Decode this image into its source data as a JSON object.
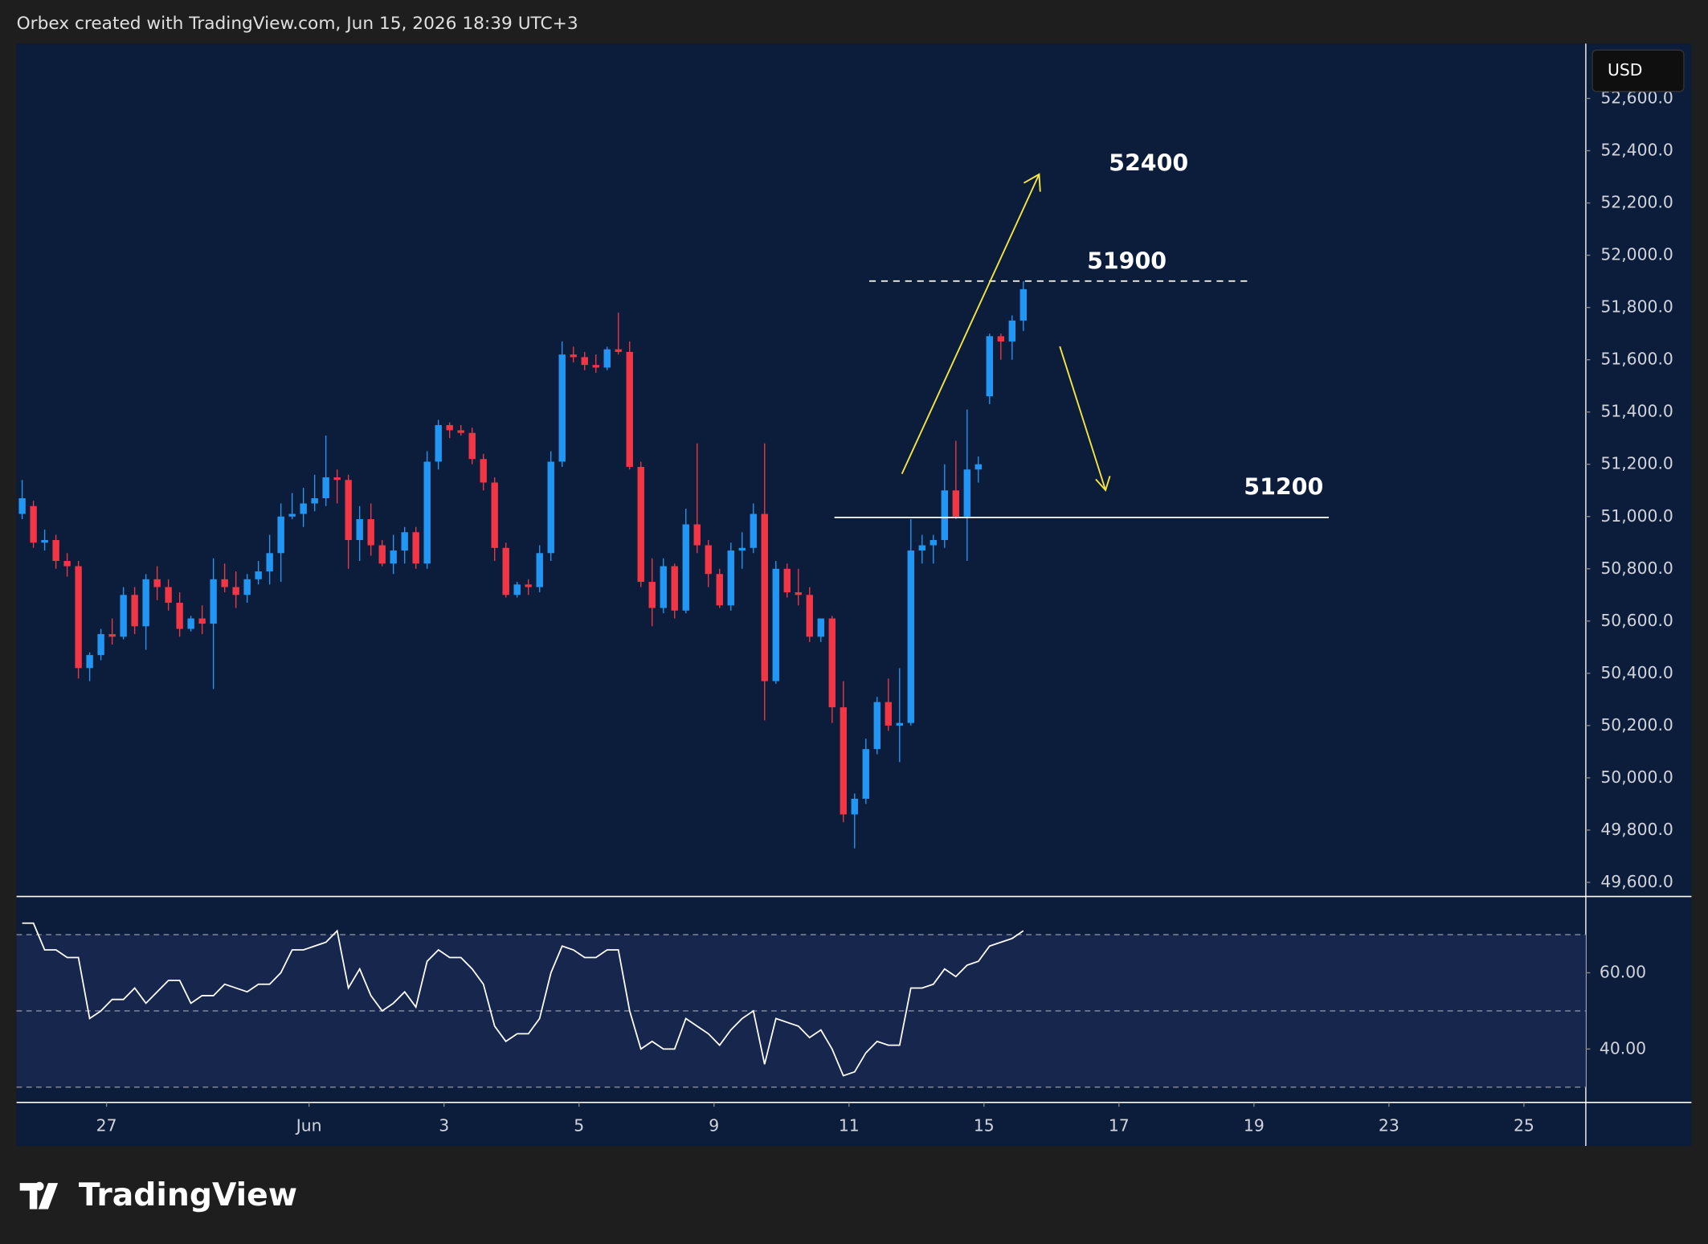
{
  "header": {
    "attribution": "Orbex created with TradingView.com, Jun 15, 2026 18:39 UTC+3",
    "logo": "TradingView"
  },
  "chart_data": [
    {
      "type": "candlestick",
      "currency": "USD",
      "up_color": "#2196f3",
      "down_color": "#f23645",
      "annotations": [
        "52400",
        "51900",
        "51200"
      ],
      "open": [
        51010,
        51040,
        50900,
        50910,
        50830,
        50810,
        50420,
        50470,
        50550,
        50540,
        50700,
        50580,
        50760,
        50730,
        50670,
        50570,
        50610,
        50590,
        50760,
        50730,
        50700,
        50760,
        50790,
        50860,
        51000,
        51010,
        51050,
        51070,
        51150,
        51140,
        50910,
        50990,
        50890,
        50820,
        50870,
        50940,
        50820,
        51210,
        51350,
        51330,
        51320,
        51220,
        51130,
        50880,
        50700,
        50740,
        50730,
        50860,
        51210,
        51620,
        51610,
        51580,
        51570,
        51640,
        51630,
        51190,
        50750,
        50650,
        50810,
        50640,
        50970,
        50890,
        50780,
        50660,
        50870,
        50880,
        51010,
        50370,
        50800,
        50710,
        50700,
        50540,
        50610,
        50270,
        49860,
        49920,
        50110,
        50290,
        50200,
        50210,
        50870,
        50890,
        50910,
        51100,
        51000,
        51180,
        51460,
        51690,
        51670,
        51750
      ],
      "high": [
        51140,
        51060,
        50950,
        50930,
        50860,
        50830,
        50480,
        50570,
        50610,
        50730,
        50730,
        50780,
        50810,
        50760,
        50710,
        50620,
        50660,
        50840,
        50820,
        50790,
        50780,
        50830,
        50930,
        51050,
        51090,
        51110,
        51160,
        51310,
        51180,
        51160,
        51040,
        51050,
        50910,
        50930,
        50960,
        50960,
        51250,
        51370,
        51360,
        51350,
        51340,
        51240,
        51150,
        50900,
        50750,
        50760,
        50890,
        51250,
        51670,
        51650,
        51630,
        51620,
        51650,
        51780,
        51670,
        51210,
        50840,
        50840,
        50820,
        51030,
        51280,
        50910,
        50800,
        50900,
        50940,
        51050,
        51280,
        50830,
        50820,
        50800,
        50730,
        50610,
        50620,
        50370,
        49940,
        50150,
        50310,
        50380,
        50420,
        50990,
        50930,
        50930,
        51200,
        51290,
        51410,
        51230,
        51700,
        51700,
        51770,
        51900
      ],
      "low": [
        50990,
        50880,
        50870,
        50800,
        50770,
        50380,
        50370,
        50450,
        50510,
        50530,
        50550,
        50490,
        50680,
        50640,
        50540,
        50560,
        50550,
        50340,
        50710,
        50650,
        50670,
        50740,
        50740,
        50750,
        50990,
        50960,
        51020,
        51040,
        51050,
        50800,
        50830,
        50850,
        50810,
        50780,
        50820,
        50800,
        50800,
        51180,
        51300,
        51310,
        51200,
        51100,
        50830,
        50690,
        50690,
        50700,
        50710,
        50830,
        51190,
        51590,
        51560,
        51550,
        51560,
        51620,
        51180,
        50730,
        50580,
        50630,
        50610,
        50630,
        50860,
        50730,
        50650,
        50640,
        50800,
        50860,
        50220,
        50360,
        50690,
        50660,
        50520,
        50520,
        50210,
        49830,
        49730,
        49900,
        50090,
        50180,
        50060,
        50200,
        50820,
        50820,
        50880,
        50990,
        50830,
        51130,
        51430,
        51600,
        51600,
        51710
      ],
      "close": [
        51070,
        50900,
        50910,
        50830,
        50810,
        50420,
        50470,
        50550,
        50540,
        50700,
        50580,
        50760,
        50730,
        50670,
        50570,
        50610,
        50590,
        50760,
        50730,
        50700,
        50760,
        50790,
        50860,
        51000,
        51010,
        51050,
        51070,
        51150,
        51140,
        50910,
        50990,
        50890,
        50820,
        50870,
        50940,
        50820,
        51210,
        51350,
        51330,
        51320,
        51220,
        51130,
        50880,
        50700,
        50740,
        50730,
        50860,
        51210,
        51620,
        51610,
        51580,
        51570,
        51640,
        51630,
        51190,
        50750,
        50650,
        50810,
        50640,
        50970,
        50890,
        50780,
        50660,
        50870,
        50880,
        51010,
        50370,
        50800,
        50710,
        50700,
        50540,
        50610,
        50270,
        49860,
        49920,
        50110,
        50290,
        50200,
        50210,
        50870,
        50890,
        50910,
        51100,
        51000,
        51180,
        51200,
        51690,
        51670,
        51750,
        51870
      ],
      "ylim": [
        49550,
        52810
      ],
      "yticks": [
        {
          "value": 49600,
          "label": "49,600.0"
        },
        {
          "value": 49800,
          "label": "49,800.0"
        },
        {
          "value": 50000,
          "label": "50,000.0"
        },
        {
          "value": 50200,
          "label": "50,200.0"
        },
        {
          "value": 50400,
          "label": "50,400.0"
        },
        {
          "value": 50600,
          "label": "50,600.0"
        },
        {
          "value": 50800,
          "label": "50,800.0"
        },
        {
          "value": 51000,
          "label": "51,000.0"
        },
        {
          "value": 51200,
          "label": "51,200.0"
        },
        {
          "value": 51400,
          "label": "51,400.0"
        },
        {
          "value": 51600,
          "label": "51,600.0"
        },
        {
          "value": 51800,
          "label": "51,800.0"
        },
        {
          "value": 52000,
          "label": "52,000.0"
        },
        {
          "value": 52200,
          "label": "52,200.0"
        },
        {
          "value": 52400,
          "label": "52,400.0"
        },
        {
          "value": 52600,
          "label": "52,600.0"
        }
      ],
      "xlim": [
        -0.5,
        139
      ],
      "xticks": [
        {
          "value": 7.5,
          "label": "27"
        },
        {
          "value": 25.5,
          "label": "Jun"
        },
        {
          "value": 37.5,
          "label": "3"
        },
        {
          "value": 49.5,
          "label": "5"
        },
        {
          "value": 61.5,
          "label": "9"
        },
        {
          "value": 73.5,
          "label": "11"
        },
        {
          "value": 85.5,
          "label": "15"
        },
        {
          "value": 97.5,
          "label": "17"
        },
        {
          "value": 109.5,
          "label": "19"
        },
        {
          "value": 121.5,
          "label": "23"
        },
        {
          "value": 133.5,
          "label": "25"
        }
      ]
    },
    {
      "type": "line",
      "color": "#ffffff",
      "values": [
        73,
        73,
        66,
        66,
        64,
        64,
        48,
        50,
        53,
        53,
        56,
        52,
        55,
        58,
        58,
        52,
        54,
        54,
        57,
        56,
        55,
        57,
        57,
        60,
        66,
        66,
        67,
        68,
        71,
        56,
        61,
        54,
        50,
        52,
        55,
        51,
        63,
        66,
        64,
        64,
        61,
        57,
        46,
        42,
        44,
        44,
        48,
        60,
        67,
        66,
        64,
        64,
        66,
        66,
        50,
        40,
        42,
        40,
        40,
        48,
        46,
        44,
        41,
        45,
        48,
        50,
        36,
        48,
        47,
        46,
        43,
        45,
        40,
        33,
        34,
        39,
        42,
        41,
        41,
        56,
        56,
        57,
        61,
        59,
        62,
        63,
        67,
        68,
        69,
        71
      ],
      "levels": [
        70,
        50,
        30
      ],
      "ylim": [
        26,
        80
      ],
      "yticks": [
        {
          "value": 60,
          "label": "60.00"
        },
        {
          "value": 40,
          "label": "40.00"
        }
      ]
    }
  ]
}
